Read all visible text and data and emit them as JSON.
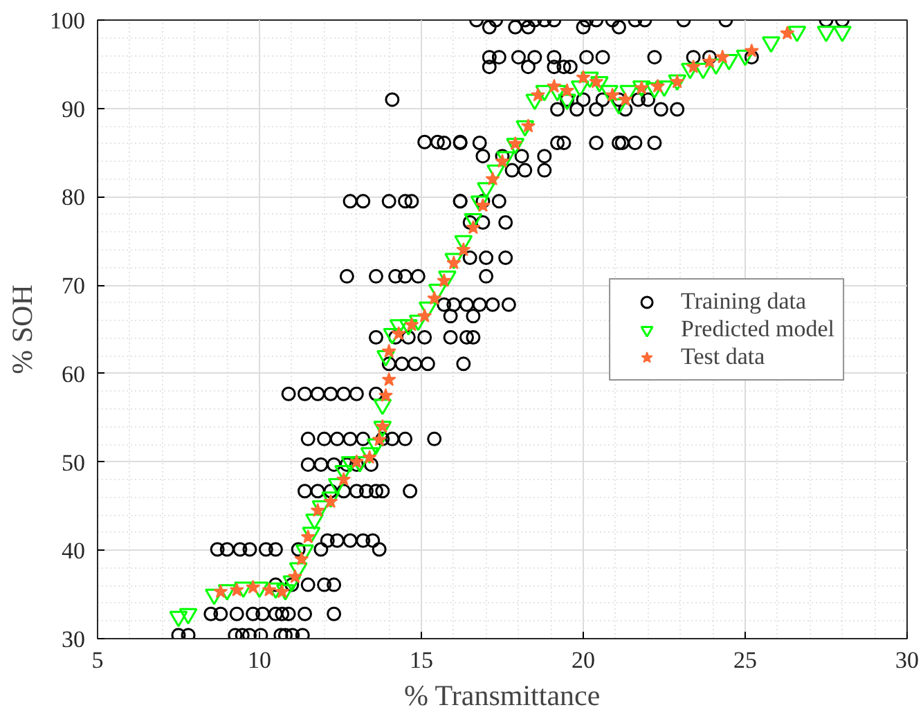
{
  "chart_data": {
    "type": "scatter",
    "xlabel": "% Transmittance",
    "ylabel": "% SOH",
    "xlim": [
      5,
      30
    ],
    "xticks": [
      5,
      10,
      15,
      20,
      25,
      30
    ],
    "ylim": [
      30,
      100
    ],
    "yticks": [
      30,
      40,
      50,
      60,
      70,
      80,
      90,
      100
    ],
    "grid": true,
    "legend": "right",
    "series": [
      {
        "name": "Training data",
        "color": "#000000",
        "marker": "circle",
        "x": [
          7.5,
          7.8,
          9.25,
          9.47,
          9.69,
          10.04,
          10.66,
          10.8,
          11.02,
          11.33,
          8.5,
          8.8,
          9.3,
          9.8,
          10.1,
          10.5,
          10.7,
          10.9,
          11.4,
          12.3,
          10.5,
          11.0,
          11.5,
          12.0,
          12.3,
          8.7,
          9.0,
          9.4,
          9.7,
          10.2,
          10.5,
          11.2,
          11.9,
          13.7,
          12.1,
          12.4,
          12.8,
          13.2,
          13.5,
          11.4,
          11.8,
          12.2,
          12.6,
          13.0,
          13.3,
          13.6,
          13.8,
          14.65,
          11.5,
          11.9,
          12.3,
          12.7,
          13.0,
          13.45,
          11.5,
          12.0,
          12.4,
          12.8,
          13.2,
          13.8,
          14.1,
          14.5,
          15.4,
          10.9,
          11.4,
          11.8,
          12.2,
          12.6,
          13.0,
          13.6,
          14.0,
          14.4,
          14.8,
          15.2,
          16.3,
          13.6,
          14.2,
          14.6,
          15.1,
          16.4,
          15.9,
          16.6,
          12.7,
          13.6,
          14.2,
          14.5,
          14.9,
          12.8,
          13.2,
          14.0,
          14.5,
          14.7,
          16.2,
          15.1,
          15.5,
          16.2,
          14.1,
          15.7,
          16.0,
          16.4,
          16.8,
          17.2,
          17.7,
          15.9,
          16.6,
          16.5,
          17.0,
          17.6,
          17.0,
          16.5,
          16.9,
          17.6,
          16.2,
          16.9,
          17.4,
          17.8,
          18.2,
          18.8,
          16.9,
          17.5,
          18.1,
          18.8,
          15.7,
          16.2,
          16.8,
          19.2,
          19.4,
          20.4,
          21.1,
          21.2,
          21.6,
          22.2,
          19.2,
          19.8,
          20.4,
          21.3,
          22.4,
          22.9,
          19.5,
          20.0,
          20.6,
          21.1,
          21.7,
          22.0,
          17.1,
          18.3,
          19.1,
          19.4,
          19.6,
          17.1,
          17.4,
          18.0,
          18.5,
          19.1,
          20.1,
          20.6,
          22.2,
          23.4,
          23.9,
          25.2,
          17.1,
          17.9,
          18.3,
          20.0,
          21.1,
          16.7,
          17.3,
          18.2,
          18.5,
          18.8,
          19.1,
          20.1,
          20.4,
          20.9,
          21.6,
          21.9,
          23.1,
          24.4,
          27.5,
          28.0
        ],
        "values": [
          30.4,
          30.4,
          30.4,
          30.4,
          30.4,
          30.4,
          30.4,
          30.4,
          30.4,
          30.4,
          32.8,
          32.8,
          32.8,
          32.8,
          32.8,
          32.8,
          32.8,
          32.8,
          32.8,
          32.8,
          36.1,
          36.1,
          36.1,
          36.1,
          36.1,
          40.1,
          40.1,
          40.1,
          40.1,
          40.1,
          40.1,
          40.1,
          40.1,
          40.1,
          41.1,
          41.1,
          41.1,
          41.1,
          41.1,
          46.7,
          46.7,
          46.7,
          46.7,
          46.7,
          46.7,
          46.7,
          46.7,
          46.7,
          49.7,
          49.7,
          49.7,
          49.7,
          49.7,
          49.7,
          52.6,
          52.6,
          52.6,
          52.6,
          52.6,
          52.6,
          52.6,
          52.6,
          52.6,
          57.7,
          57.7,
          57.7,
          57.7,
          57.7,
          57.7,
          57.7,
          61.1,
          61.1,
          61.1,
          61.1,
          61.1,
          64.1,
          64.1,
          64.1,
          64.1,
          64.1,
          64.1,
          64.1,
          71.0,
          71.0,
          71.0,
          71.0,
          71.0,
          79.5,
          79.5,
          79.5,
          79.5,
          79.5,
          79.5,
          86.2,
          86.2,
          86.2,
          91.0,
          67.8,
          67.8,
          67.8,
          67.8,
          67.8,
          67.8,
          66.5,
          66.5,
          73.1,
          73.1,
          73.1,
          71.0,
          77.1,
          77.1,
          77.1,
          79.5,
          79.5,
          79.5,
          83.0,
          83.0,
          83.0,
          84.6,
          84.6,
          84.6,
          84.6,
          86.1,
          86.1,
          86.1,
          86.1,
          86.1,
          86.1,
          86.1,
          86.1,
          86.1,
          86.1,
          89.9,
          89.9,
          89.9,
          89.9,
          89.9,
          89.9,
          91.0,
          91.0,
          91.0,
          91.0,
          91.0,
          91.0,
          94.7,
          94.7,
          94.7,
          94.7,
          94.7,
          95.8,
          95.8,
          95.8,
          95.8,
          95.8,
          95.8,
          95.8,
          95.8,
          95.8,
          95.8,
          95.8,
          99.2,
          99.2,
          99.2,
          99.2,
          99.2,
          100,
          100,
          100,
          100,
          100,
          100,
          100,
          100,
          100,
          100,
          100,
          100,
          100,
          100,
          100
        ]
      },
      {
        "name": "Predicted model",
        "color": "#00ff00",
        "marker": "triangle",
        "x": [
          7.5,
          7.8,
          8.6,
          9.0,
          9.5,
          10.0,
          10.5,
          10.8,
          11.0,
          11.2,
          11.4,
          11.6,
          11.7,
          11.9,
          12.2,
          12.4,
          12.6,
          12.8,
          13.1,
          13.4,
          13.6,
          13.8,
          13.8,
          13.9,
          14.1,
          14.3,
          14.6,
          14.9,
          15.2,
          15.5,
          15.8,
          16.0,
          16.3,
          16.6,
          16.8,
          17.0,
          17.3,
          17.6,
          17.9,
          18.2,
          18.5,
          18.8,
          19.2,
          19.5,
          19.9,
          20.2,
          20.5,
          20.8,
          21.1,
          21.4,
          21.8,
          22.2,
          22.5,
          22.9,
          23.3,
          23.7,
          24.1,
          24.5,
          25.0,
          25.8,
          26.6,
          27.5,
          28.0
        ],
        "values": [
          32.5,
          32.8,
          35.0,
          35.5,
          35.8,
          35.8,
          35.7,
          35.5,
          36.5,
          38.0,
          40.0,
          42.0,
          43.5,
          45.0,
          46.0,
          47.5,
          49.0,
          50.0,
          50.0,
          51.0,
          52.0,
          54.0,
          56.5,
          62.0,
          64.5,
          65.5,
          65.5,
          66.0,
          67.5,
          69.5,
          71.0,
          73.0,
          75.0,
          77.5,
          79.5,
          81.0,
          83.0,
          84.5,
          86.0,
          88.0,
          91.0,
          92.0,
          92.0,
          91.0,
          92.5,
          93.5,
          93.0,
          92.0,
          90.5,
          92.0,
          92.5,
          92.3,
          92.5,
          93.2,
          94.5,
          94.5,
          95.0,
          95.5,
          96.0,
          97.5,
          98.7,
          98.7,
          98.7
        ]
      },
      {
        "name": "Test data",
        "color": "#ff6b35",
        "marker": "star",
        "x": [
          8.8,
          9.3,
          9.8,
          10.3,
          10.7,
          11.1,
          11.3,
          11.5,
          11.8,
          12.2,
          12.6,
          13.0,
          13.4,
          13.7,
          13.8,
          13.9,
          14.0,
          14.0,
          14.3,
          14.7,
          15.1,
          15.4,
          15.7,
          16.0,
          16.3,
          16.6,
          16.9,
          17.2,
          17.5,
          17.9,
          18.3,
          18.6,
          19.1,
          19.5,
          20.0,
          20.4,
          20.9,
          21.3,
          21.8,
          22.3,
          22.9,
          23.4,
          23.9,
          24.3,
          25.2,
          26.3
        ],
        "values": [
          35.3,
          35.5,
          35.8,
          35.5,
          35.3,
          37.0,
          39.0,
          41.5,
          44.5,
          45.5,
          48.0,
          50.0,
          50.5,
          52.5,
          54.0,
          57.5,
          59.3,
          62.5,
          64.5,
          65.5,
          66.5,
          68.5,
          70.5,
          72.5,
          74.0,
          76.5,
          79.0,
          82.0,
          84.0,
          86.0,
          88.0,
          91.5,
          92.5,
          92.0,
          93.5,
          93.0,
          91.5,
          91.0,
          92.3,
          92.5,
          93.0,
          94.7,
          95.3,
          95.8,
          96.5,
          98.5
        ]
      }
    ]
  }
}
